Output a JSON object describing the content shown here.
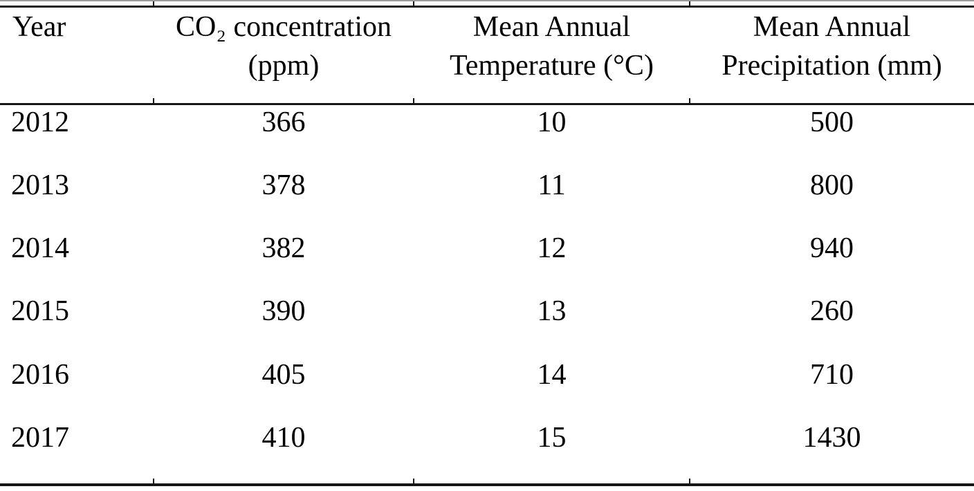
{
  "colors": {
    "ink": "#000000",
    "rule": "#161616",
    "edge": "#9a9a9a"
  },
  "table": {
    "columns": [
      {
        "id": "year",
        "line1": "Year",
        "line2": ""
      },
      {
        "id": "co2",
        "line1": "CO₂ concentration",
        "line2": "(ppm)"
      },
      {
        "id": "temperature",
        "line1": "Mean Annual",
        "line2": "Temperature (°C)"
      },
      {
        "id": "precipitation",
        "line1": "Mean Annual",
        "line2": "Precipitation (mm)"
      }
    ],
    "rows": [
      [
        "2012",
        "366",
        "10",
        "500"
      ],
      [
        "2013",
        "378",
        "11",
        "800"
      ],
      [
        "2014",
        "382",
        "12",
        "940"
      ],
      [
        "2015",
        "390",
        "13",
        "260"
      ],
      [
        "2016",
        "405",
        "14",
        "710"
      ],
      [
        "2017",
        "410",
        "15",
        "1430"
      ]
    ]
  }
}
